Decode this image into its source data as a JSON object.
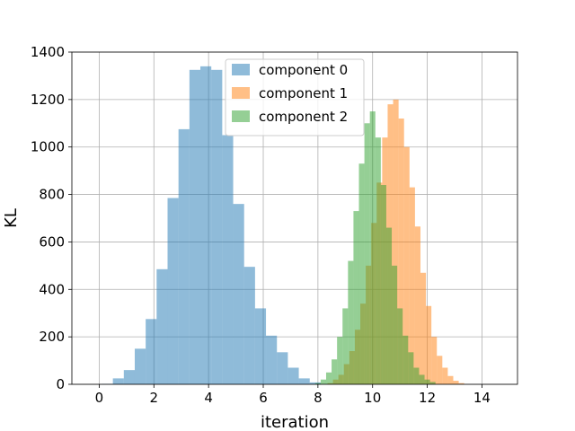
{
  "chart_data": {
    "type": "histogram",
    "title": "",
    "xlabel": "iteration",
    "ylabel": "KL",
    "xlim": [
      -1.0,
      15.3
    ],
    "ylim": [
      0,
      1400
    ],
    "xticks": [
      0,
      2,
      4,
      6,
      8,
      10,
      12,
      14
    ],
    "yticks": [
      0,
      200,
      400,
      600,
      800,
      1000,
      1200,
      1400
    ],
    "grid": true,
    "legend_position": "upper-center",
    "series": [
      {
        "name": "component 0",
        "color": "#1f77b4",
        "alpha": 0.5,
        "bin_start": 0.1,
        "bin_width": 0.4,
        "counts": [
          2,
          25,
          60,
          150,
          275,
          485,
          785,
          1075,
          1325,
          1340,
          1325,
          1050,
          760,
          495,
          320,
          205,
          135,
          70,
          25,
          8
        ]
      },
      {
        "name": "component 1",
        "color": "#ff7f0e",
        "alpha": 0.5,
        "bin_start": 8.35,
        "bin_width": 0.2,
        "counts": [
          5,
          20,
          40,
          85,
          140,
          230,
          340,
          500,
          680,
          850,
          1040,
          1180,
          1200,
          1120,
          1000,
          830,
          665,
          470,
          330,
          200,
          120,
          70,
          35,
          15,
          5
        ]
      },
      {
        "name": "component 2",
        "color": "#2ca02c",
        "alpha": 0.5,
        "bin_start": 7.9,
        "bin_width": 0.2,
        "counts": [
          5,
          20,
          50,
          105,
          200,
          320,
          520,
          730,
          930,
          1100,
          1150,
          1040,
          840,
          660,
          500,
          320,
          205,
          135,
          70,
          40,
          20,
          10
        ]
      }
    ]
  }
}
